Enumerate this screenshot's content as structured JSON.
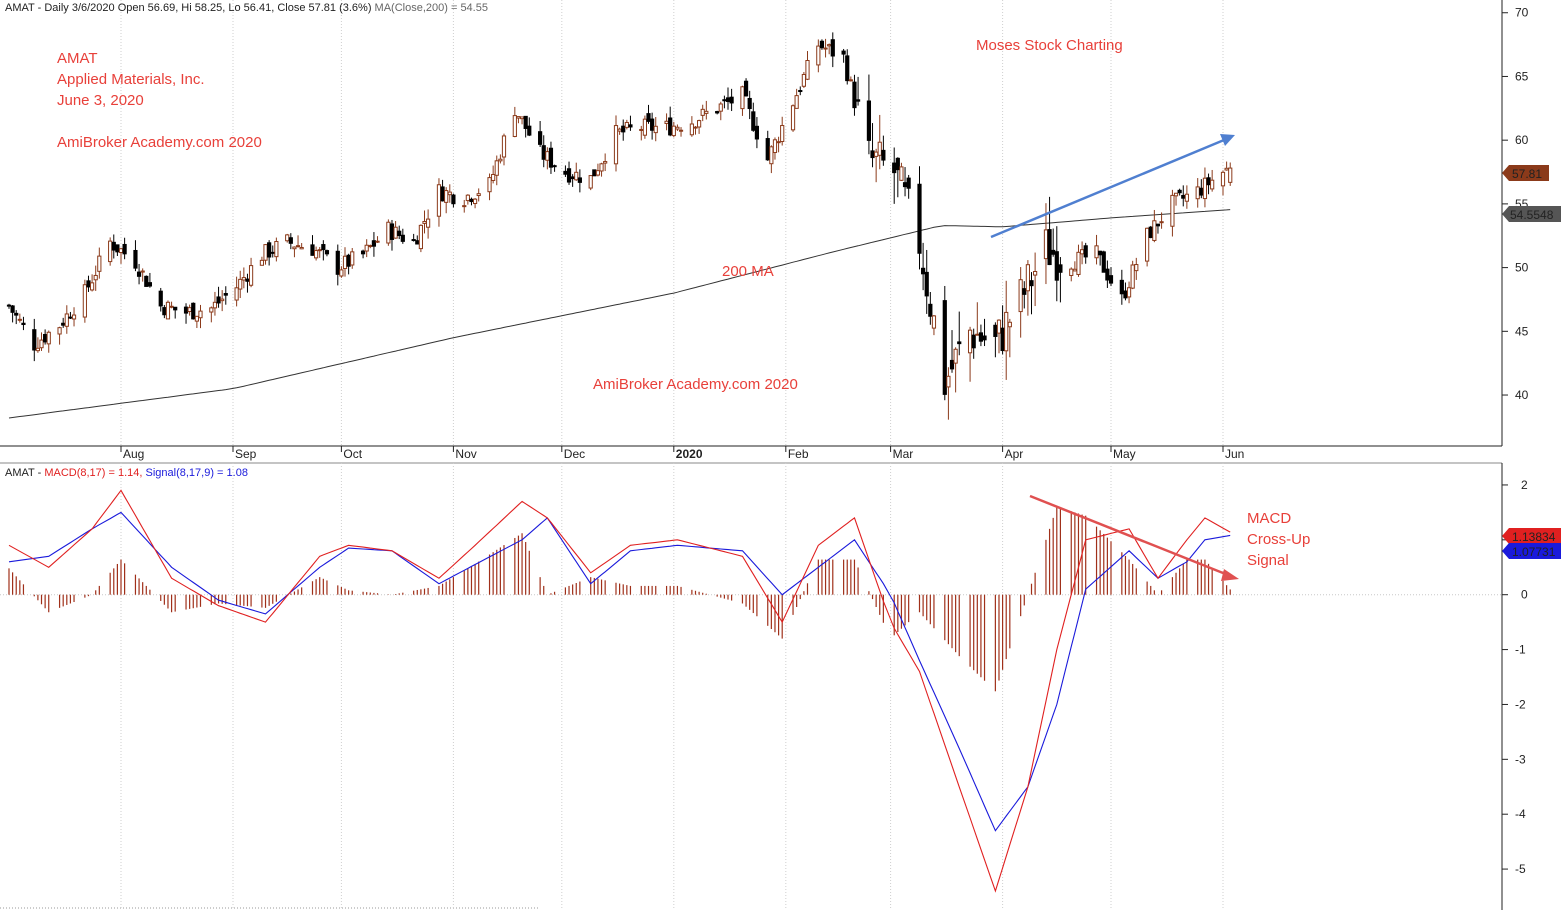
{
  "price_header": {
    "symbol": "AMAT",
    "summary": " - Daily 3/6/2020 Open 56.69, Hi 58.25, Lo 56.41, Close 57.81 (3.6%) ",
    "ma_label": "MA(Close,200) = 54.55"
  },
  "macd_header": {
    "symbol": "AMAT",
    "macd_label": "MACD(8,17) = 1.14,",
    "signal_label": "Signal(8,17,9) = 1.08"
  },
  "annotations": {
    "company_ticker": "AMAT",
    "company_name": "Applied Materials, Inc.",
    "date": "June 3, 2020",
    "watermark_1": "AmiBroker Academy.com  2020",
    "watermark_2": "AmiBroker Academy.com  2020",
    "author": "Moses Stock Charting",
    "ma_label": "200 MA",
    "macd_note_1": "MACD",
    "macd_note_2": "Cross-Up",
    "macd_note_3": "Signal"
  },
  "badges": {
    "close": "57.81",
    "ma": "54.5548",
    "macd": "1.13834",
    "signal": "1.07731"
  },
  "colors": {
    "up_candle": "#8b3a1a",
    "down_candle": "#000000",
    "ma_line": "#333333",
    "macd_line": "#e02020",
    "signal_line": "#1a1adb",
    "histogram": "#a0301a",
    "trend_up_arrow": "#4f7fd0",
    "trend_down_arrow": "#e05050",
    "annotation_text": "#e8403a"
  },
  "chart_data": [
    {
      "type": "candlestick",
      "title": "AMAT - Daily 3/6/2020",
      "x_ticks": [
        "Aug",
        "Sep",
        "Oct",
        "Nov",
        "Dec",
        "2020",
        "Feb",
        "Mar",
        "Apr",
        "May",
        "Jun"
      ],
      "y_ticks": [
        "40",
        "45",
        "50",
        "55",
        "60",
        "65",
        "70"
      ],
      "ylim": [
        36,
        71
      ],
      "close_anchors": [
        [
          "2019-07-01",
          47.0
        ],
        [
          "2019-07-08",
          44.0
        ],
        [
          "2019-07-15",
          45.5
        ],
        [
          "2019-07-22",
          48.0
        ],
        [
          "2019-07-29",
          52.0
        ],
        [
          "2019-08-05",
          50.5
        ],
        [
          "2019-08-12",
          47.0
        ],
        [
          "2019-08-19",
          46.5
        ],
        [
          "2019-08-26",
          46.8
        ],
        [
          "2019-09-02",
          48.5
        ],
        [
          "2019-09-09",
          51.0
        ],
        [
          "2019-09-16",
          52.0
        ],
        [
          "2019-09-23",
          51.5
        ],
        [
          "2019-09-30",
          50.0
        ],
        [
          "2019-10-07",
          51.0
        ],
        [
          "2019-10-14",
          53.0
        ],
        [
          "2019-10-21",
          52.0
        ],
        [
          "2019-10-28",
          56.0
        ],
        [
          "2019-11-04",
          55.5
        ],
        [
          "2019-11-11",
          56.5
        ],
        [
          "2019-11-18",
          62.5
        ],
        [
          "2019-11-25",
          59.0
        ],
        [
          "2019-12-02",
          57.5
        ],
        [
          "2019-12-09",
          57.0
        ],
        [
          "2019-12-16",
          60.5
        ],
        [
          "2019-12-23",
          61.0
        ],
        [
          "2019-12-30",
          61.0
        ],
        [
          "2020-01-06",
          61.5
        ],
        [
          "2020-01-13",
          62.5
        ],
        [
          "2020-01-20",
          63.5
        ],
        [
          "2020-01-27",
          58.5
        ],
        [
          "2020-02-03",
          63.0
        ],
        [
          "2020-02-10",
          67.5
        ],
        [
          "2020-02-17",
          66.5
        ],
        [
          "2020-02-24",
          58.5
        ],
        [
          "2020-03-02",
          57.5
        ],
        [
          "2020-03-09",
          52.0
        ],
        [
          "2020-03-16",
          41.0
        ],
        [
          "2020-03-23",
          45.0
        ],
        [
          "2020-03-30",
          44.0
        ],
        [
          "2020-04-06",
          47.5
        ],
        [
          "2020-04-13",
          51.5
        ],
        [
          "2020-04-20",
          50.5
        ],
        [
          "2020-04-27",
          51.0
        ],
        [
          "2020-05-04",
          47.5
        ],
        [
          "2020-05-11",
          52.5
        ],
        [
          "2020-05-18",
          55.0
        ],
        [
          "2020-05-25",
          56.0
        ],
        [
          "2020-06-01",
          57.5
        ],
        [
          "2020-06-03",
          57.81
        ]
      ],
      "last_bar": {
        "date": "2020-06-03",
        "open": 56.69,
        "high": 58.25,
        "low": 56.41,
        "close": 57.81
      },
      "ma200": {
        "name": "MA(Close,200)",
        "anchors": [
          [
            "2019-07-01",
            38.2
          ],
          [
            "2019-09-01",
            40.5
          ],
          [
            "2019-11-01",
            44.5
          ],
          [
            "2020-01-01",
            48.0
          ],
          [
            "2020-02-15",
            51.3
          ],
          [
            "2020-03-15",
            53.3
          ],
          [
            "2020-04-01",
            53.2
          ],
          [
            "2020-05-01",
            53.9
          ],
          [
            "2020-06-03",
            54.55
          ]
        ]
      }
    },
    {
      "type": "line",
      "title": "MACD(8,17) / Signal(8,17,9)",
      "x_ticks": [
        "Aug",
        "Sep",
        "Oct",
        "Nov",
        "Dec",
        "2020",
        "Feb",
        "Mar",
        "Apr",
        "May",
        "Jun"
      ],
      "y_ticks": [
        "2",
        "1",
        "0",
        "-1",
        "-2",
        "-3",
        "-4",
        "-5"
      ],
      "ylim": [
        -5.6,
        2.4
      ],
      "series": [
        {
          "name": "MACD(8,17)",
          "anchors": [
            [
              "2019-07-01",
              0.9
            ],
            [
              "2019-07-12",
              0.5
            ],
            [
              "2019-07-24",
              1.2
            ],
            [
              "2019-08-01",
              1.9
            ],
            [
              "2019-08-15",
              0.3
            ],
            [
              "2019-08-28",
              -0.2
            ],
            [
              "2019-09-10",
              -0.5
            ],
            [
              "2019-09-25",
              0.7
            ],
            [
              "2019-10-03",
              0.9
            ],
            [
              "2019-10-15",
              0.8
            ],
            [
              "2019-10-28",
              0.3
            ],
            [
              "2019-11-07",
              0.9
            ],
            [
              "2019-11-20",
              1.7
            ],
            [
              "2019-11-27",
              1.4
            ],
            [
              "2019-12-09",
              0.4
            ],
            [
              "2019-12-20",
              0.9
            ],
            [
              "2020-01-02",
              1.0
            ],
            [
              "2020-01-20",
              0.7
            ],
            [
              "2020-01-31",
              -0.5
            ],
            [
              "2020-02-10",
              0.9
            ],
            [
              "2020-02-20",
              1.4
            ],
            [
              "2020-03-01",
              -0.5
            ],
            [
              "2020-03-09",
              -1.4
            ],
            [
              "2020-03-20",
              -3.5
            ],
            [
              "2020-03-30",
              -5.4
            ],
            [
              "2020-04-08",
              -3.5
            ],
            [
              "2020-04-16",
              -1.0
            ],
            [
              "2020-04-24",
              1.0
            ],
            [
              "2020-05-06",
              1.2
            ],
            [
              "2020-05-14",
              0.3
            ],
            [
              "2020-05-22",
              1.0
            ],
            [
              "2020-05-27",
              1.4
            ],
            [
              "2020-06-03",
              1.14
            ]
          ]
        },
        {
          "name": "Signal(8,17,9)",
          "anchors": [
            [
              "2019-07-01",
              0.6
            ],
            [
              "2019-07-12",
              0.7
            ],
            [
              "2019-07-24",
              1.2
            ],
            [
              "2019-08-01",
              1.5
            ],
            [
              "2019-08-15",
              0.5
            ],
            [
              "2019-08-28",
              -0.1
            ],
            [
              "2019-09-10",
              -0.35
            ],
            [
              "2019-09-25",
              0.5
            ],
            [
              "2019-10-03",
              0.85
            ],
            [
              "2019-10-15",
              0.8
            ],
            [
              "2019-10-28",
              0.2
            ],
            [
              "2019-11-07",
              0.55
            ],
            [
              "2019-11-20",
              1.0
            ],
            [
              "2019-11-27",
              1.4
            ],
            [
              "2019-12-09",
              0.2
            ],
            [
              "2019-12-20",
              0.8
            ],
            [
              "2020-01-02",
              0.9
            ],
            [
              "2020-01-20",
              0.8
            ],
            [
              "2020-01-31",
              0.0
            ],
            [
              "2020-02-10",
              0.5
            ],
            [
              "2020-02-20",
              1.0
            ],
            [
              "2020-03-01",
              0.0
            ],
            [
              "2020-03-09",
              -1.2
            ],
            [
              "2020-03-20",
              -2.8
            ],
            [
              "2020-03-30",
              -4.3
            ],
            [
              "2020-04-08",
              -3.5
            ],
            [
              "2020-04-16",
              -2.0
            ],
            [
              "2020-04-24",
              0.1
            ],
            [
              "2020-05-06",
              0.8
            ],
            [
              "2020-05-14",
              0.3
            ],
            [
              "2020-05-22",
              0.6
            ],
            [
              "2020-05-27",
              1.0
            ],
            [
              "2020-06-03",
              1.08
            ]
          ]
        }
      ]
    }
  ]
}
